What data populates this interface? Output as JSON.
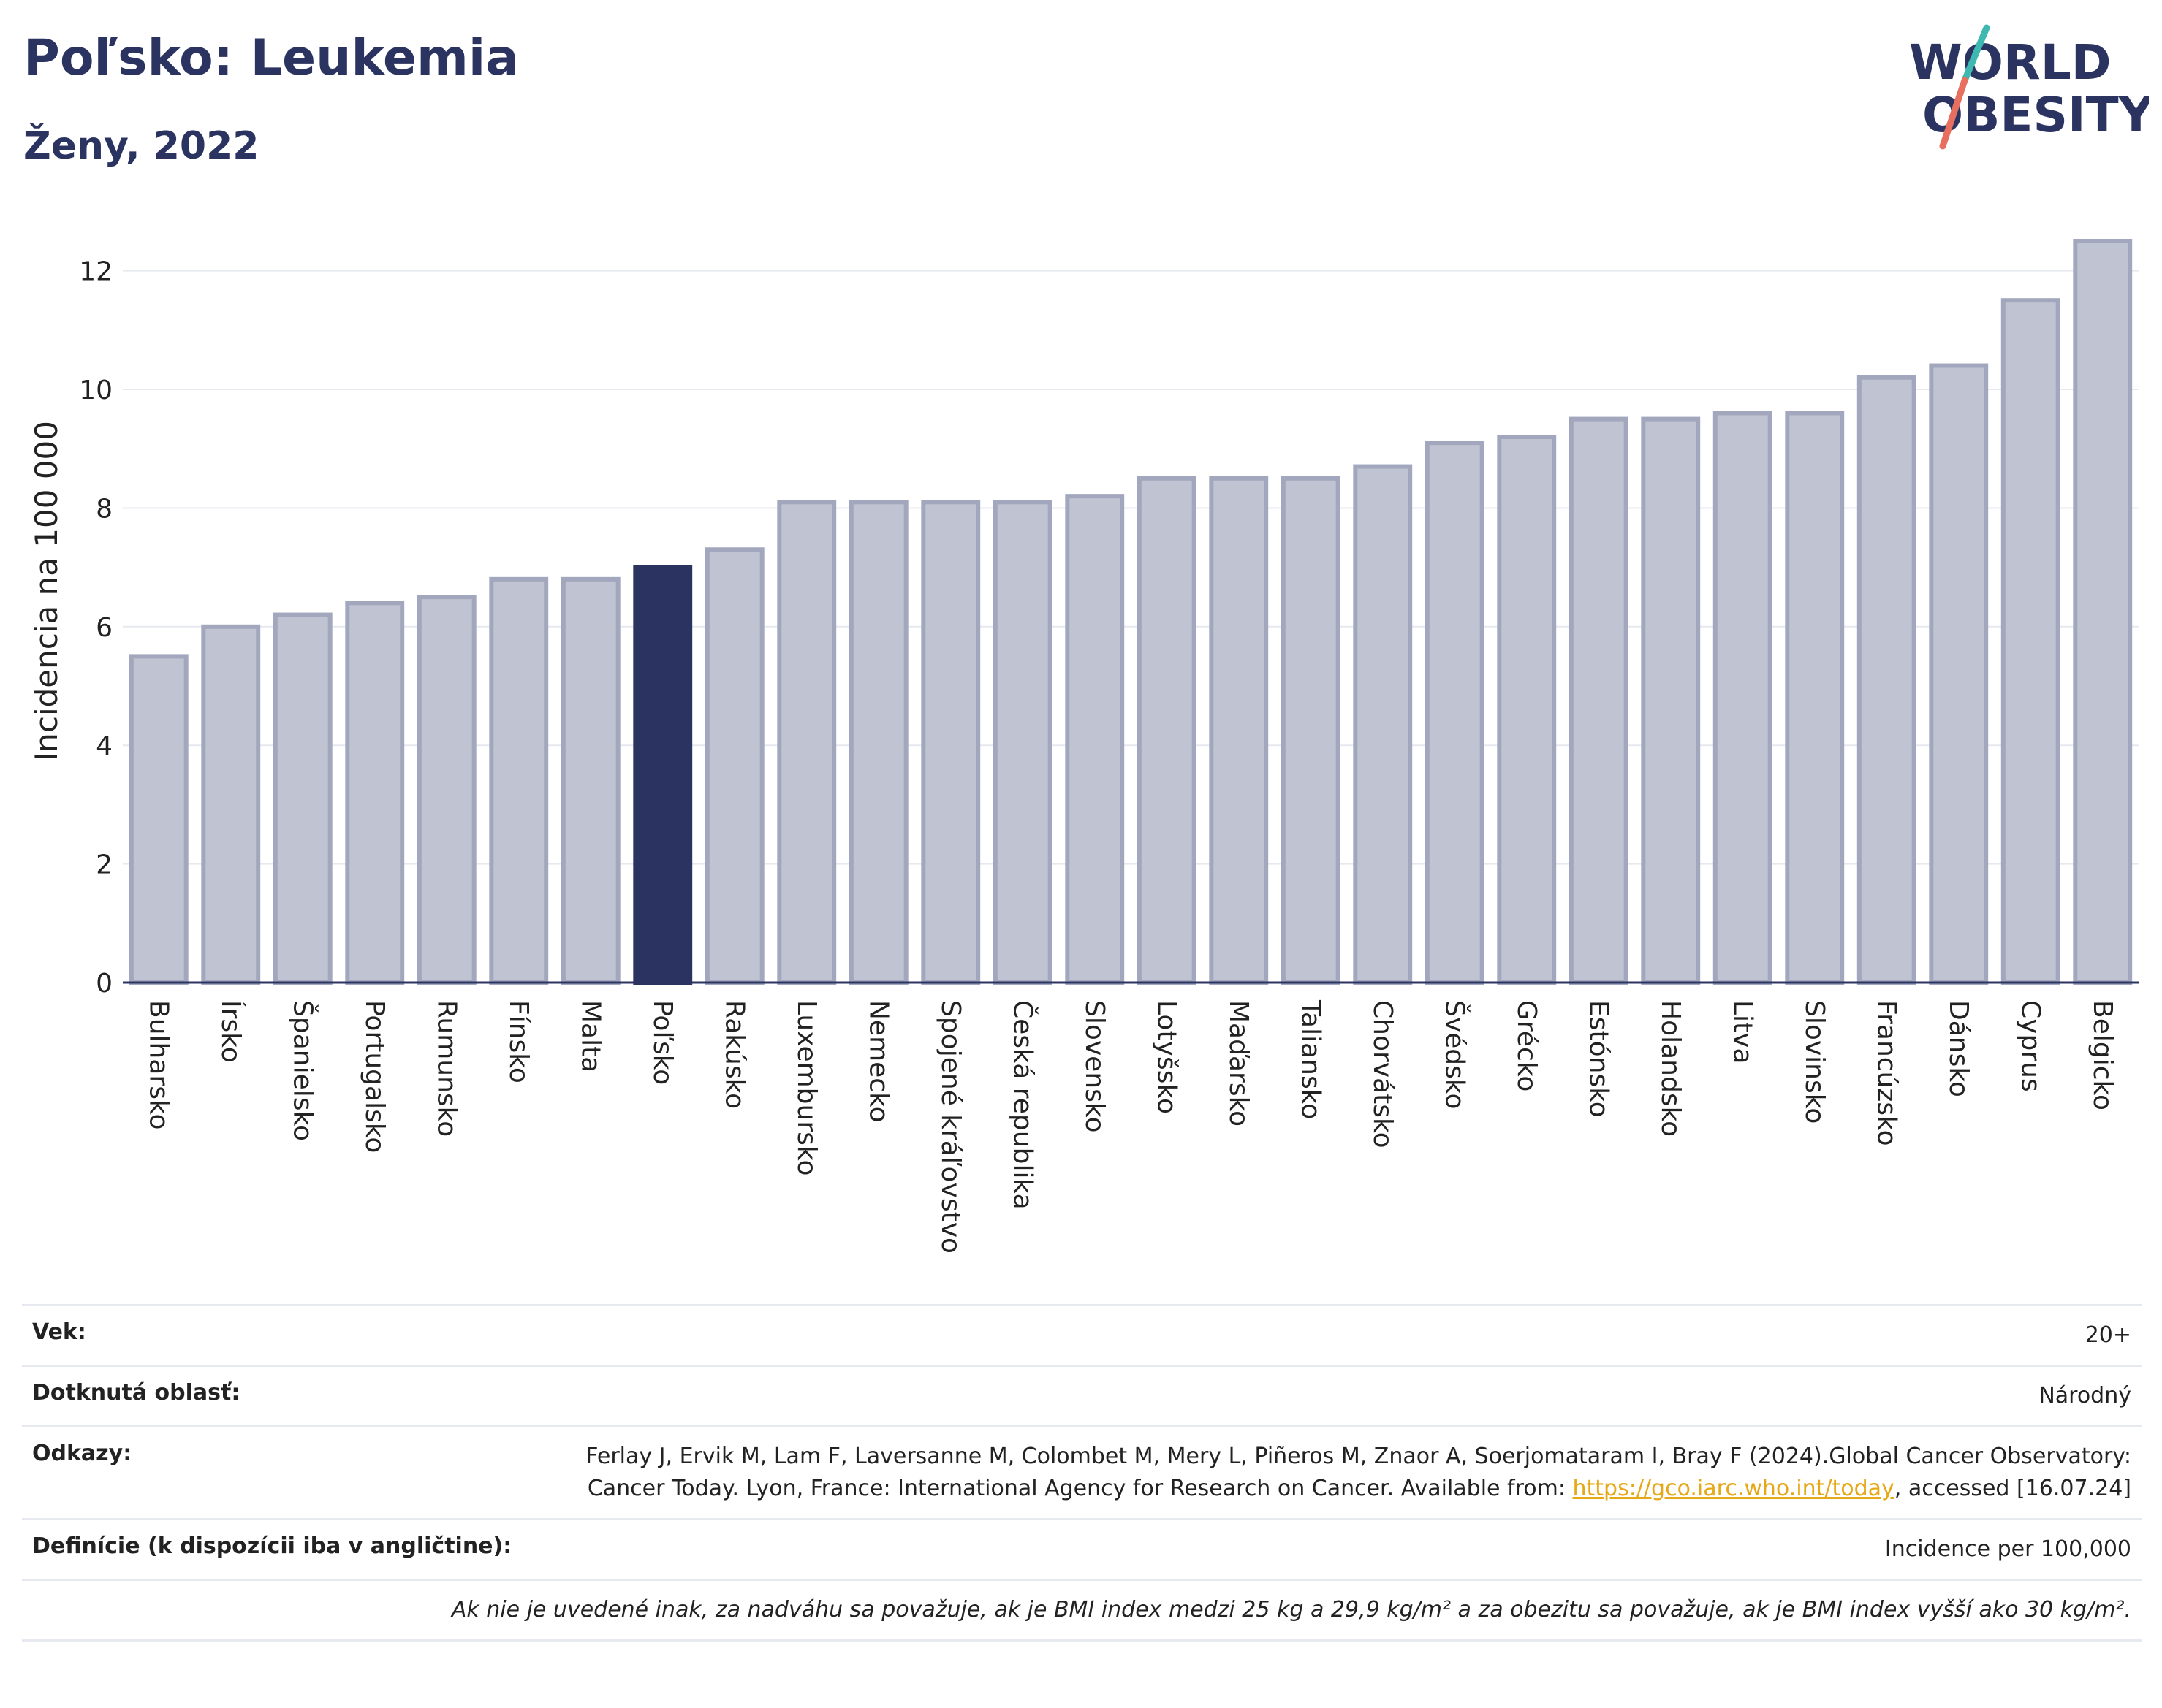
{
  "header": {
    "title": "Poľsko: Leukemia",
    "subtitle": "Ženy, 2022",
    "logo_line1": "WORLD",
    "logo_line2": "OBESITY"
  },
  "colors": {
    "bar": "#c0c3d1",
    "bar_border": "#a2a7bd",
    "highlight": "#2b3461",
    "grid": "#e6e9ef",
    "logo_text": "#2b3461",
    "logo_slash_top": "#3fb8b2",
    "logo_slash_bottom": "#e76f5f"
  },
  "chart_data": {
    "type": "bar",
    "ylabel": "Incidencia na 100 000",
    "ylim": [
      0,
      13
    ],
    "yticks": [
      0,
      2,
      4,
      6,
      8,
      10,
      12
    ],
    "grid": true,
    "highlight": "Poľsko",
    "categories": [
      "Bulharsko",
      "Írsko",
      "Španielsko",
      "Portugalsko",
      "Rumunsko",
      "Fínsko",
      "Malta",
      "Poľsko",
      "Rakúsko",
      "Luxembursko",
      "Nemecko",
      "Spojené kráľovstvo",
      "Česká republika",
      "Slovensko",
      "Lotyšsko",
      "Maďarsko",
      "Taliansko",
      "Chorvátsko",
      "Švédsko",
      "Grécko",
      "Estónsko",
      "Holandsko",
      "Litva",
      "Slovinsko",
      "Francúzsko",
      "Dánsko",
      "Cyprus",
      "Belgicko"
    ],
    "values": [
      5.5,
      6.0,
      6.2,
      6.4,
      6.5,
      6.8,
      6.8,
      7.0,
      7.3,
      8.1,
      8.1,
      8.1,
      8.1,
      8.2,
      8.5,
      8.5,
      8.5,
      8.7,
      9.1,
      9.2,
      9.5,
      9.5,
      9.6,
      9.6,
      10.2,
      10.4,
      11.5,
      12.5
    ]
  },
  "info": {
    "age_label": "Vek:",
    "age_value": "20+",
    "area_label": "Dotknutá oblasť:",
    "area_value": "Národný",
    "refs_label": "Odkazy:",
    "refs_text1": "Ferlay J, Ervik M, Lam F, Laversanne M, Colombet M, Mery L, Piñeros M, Znaor A, Soerjomataram I, Bray F (2024).Global Cancer Observatory: Cancer Today. Lyon, France: International Agency for Research on Cancer. Available from: ",
    "refs_link": "https://gco.iarc.who.int/today",
    "refs_text2": ", accessed [16.07.24]",
    "def_label": "Definície (k dispozícii iba v angličtine):",
    "def_value": "Incidence per 100,000",
    "note": "Ak nie je uvedené inak, za nadváhu sa považuje, ak je BMI index medzi 25 kg a 29,9 kg/m² a za obezitu sa považuje, ak je BMI index vyšší ako 30 kg/m²."
  }
}
